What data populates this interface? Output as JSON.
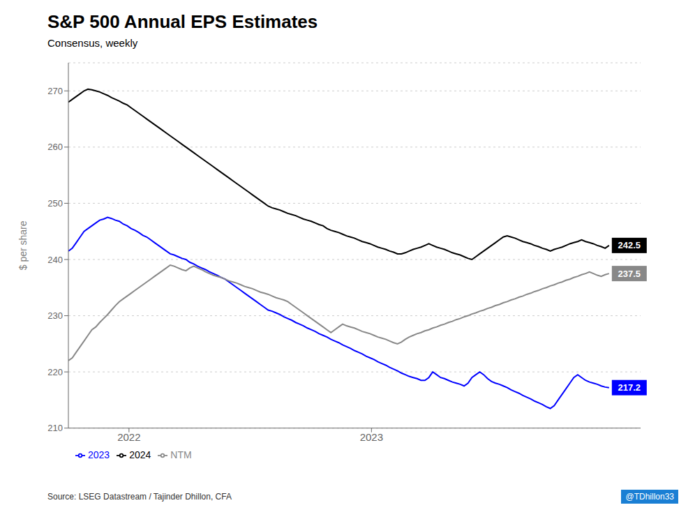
{
  "chart_data": {
    "type": "line",
    "title": "S&P 500 Annual EPS Estimates",
    "subtitle": "Consensus, weekly",
    "y_label": "$ per share",
    "source": "Source: LSEG Datastream / Tajinder Dhillon, CFA",
    "watermark": "@TDhillon33",
    "xlim": [
      2021.75,
      2024.11
    ],
    "xticks": [
      2022,
      2023
    ],
    "ylim": [
      210,
      275
    ],
    "yticks": [
      210,
      220,
      230,
      240,
      250,
      260,
      270
    ],
    "grid": true,
    "legend": "bottom",
    "x": [
      2021.75,
      2021.76616,
      2021.78232,
      2021.79848,
      2021.81464,
      2021.8308,
      2021.84696,
      2021.86312,
      2021.87928,
      2021.89543,
      2021.91159,
      2021.92775,
      2021.94391,
      2021.96007,
      2021.97623,
      2021.99239,
      2022.00855,
      2022.02471,
      2022.04087,
      2022.05703,
      2022.07319,
      2022.08935,
      2022.10551,
      2022.12167,
      2022.13783,
      2022.15399,
      2022.17014,
      2022.1863,
      2022.20246,
      2022.21862,
      2022.23478,
      2022.25094,
      2022.2671,
      2022.28326,
      2022.29942,
      2022.31558,
      2022.33174,
      2022.3479,
      2022.36406,
      2022.38022,
      2022.39638,
      2022.41254,
      2022.4287,
      2022.44486,
      2022.46101,
      2022.47717,
      2022.49333,
      2022.50949,
      2022.52565,
      2022.54181,
      2022.55797,
      2022.57413,
      2022.59029,
      2022.60645,
      2022.62261,
      2022.63877,
      2022.65493,
      2022.67109,
      2022.68725,
      2022.70341,
      2022.71957,
      2022.73572,
      2022.75188,
      2022.76804,
      2022.7842,
      2022.80036,
      2022.81652,
      2022.83268,
      2022.84884,
      2022.865,
      2022.88116,
      2022.89732,
      2022.91348,
      2022.92964,
      2022.9458,
      2022.96196,
      2022.97812,
      2022.99428,
      2023.01043,
      2023.02659,
      2023.04275,
      2023.05891,
      2023.07507,
      2023.09123,
      2023.10739,
      2023.12355,
      2023.13971,
      2023.15587,
      2023.17203,
      2023.18819,
      2023.20435,
      2023.22051,
      2023.23667,
      2023.25283,
      2023.26899,
      2023.28514,
      2023.3013,
      2023.31746,
      2023.33362,
      2023.34978,
      2023.36594,
      2023.3821,
      2023.39826,
      2023.41442,
      2023.43058,
      2023.44674,
      2023.4629,
      2023.47906,
      2023.49522,
      2023.51138,
      2023.52754,
      2023.5437,
      2023.55986,
      2023.57601,
      2023.59217,
      2023.60833,
      2023.62449,
      2023.64065,
      2023.65681,
      2023.67297,
      2023.68913,
      2023.70529,
      2023.72145,
      2023.73761,
      2023.75377,
      2023.76993,
      2023.78609,
      2023.80225,
      2023.81841,
      2023.83457,
      2023.85072,
      2023.86688,
      2023.88304,
      2023.8992,
      2023.91536,
      2023.93152,
      2023.94768,
      2023.96384,
      2023.98
    ],
    "series": [
      {
        "name": "2023",
        "color": "#0000ff",
        "values": [
          241.5,
          242.0,
          243.0,
          244.0,
          245.0,
          245.5,
          246.0,
          246.5,
          247.0,
          247.2,
          247.5,
          247.3,
          247.0,
          246.8,
          246.3,
          246.0,
          245.5,
          245.2,
          244.8,
          244.3,
          244.0,
          243.5,
          243.0,
          242.5,
          242.0,
          241.5,
          241.0,
          240.8,
          240.5,
          240.2,
          240.0,
          239.5,
          239.2,
          238.8,
          238.5,
          238.2,
          237.8,
          237.5,
          237.2,
          236.8,
          236.5,
          236.0,
          235.5,
          235.0,
          234.5,
          234.0,
          233.5,
          233.0,
          232.5,
          232.0,
          231.5,
          231.0,
          230.8,
          230.5,
          230.2,
          229.8,
          229.5,
          229.2,
          228.8,
          228.5,
          228.2,
          227.8,
          227.5,
          227.2,
          226.8,
          226.5,
          226.2,
          225.8,
          225.5,
          225.2,
          224.8,
          224.5,
          224.2,
          223.8,
          223.5,
          223.2,
          222.8,
          222.5,
          222.2,
          221.8,
          221.5,
          221.2,
          220.8,
          220.5,
          220.2,
          219.8,
          219.5,
          219.2,
          219.0,
          218.8,
          218.5,
          218.5,
          219.0,
          220.0,
          219.5,
          219.0,
          218.8,
          218.5,
          218.2,
          218.0,
          217.8,
          217.5,
          218.0,
          219.0,
          219.5,
          220.0,
          219.5,
          218.8,
          218.3,
          218.0,
          217.8,
          217.5,
          217.2,
          216.8,
          216.5,
          216.2,
          215.8,
          215.5,
          215.2,
          214.8,
          214.5,
          214.2,
          213.8,
          213.5,
          214.0,
          215.0,
          216.0,
          217.0,
          218.0,
          219.0,
          219.5,
          219.0,
          218.5,
          218.2,
          218.0,
          217.8,
          217.5,
          217.3,
          217.2
        ]
      },
      {
        "name": "2024",
        "color": "#000000",
        "values": [
          268.0,
          268.5,
          269.0,
          269.5,
          270.0,
          270.3,
          270.2,
          270.0,
          269.8,
          269.5,
          269.2,
          268.8,
          268.5,
          268.2,
          267.8,
          267.5,
          267.0,
          266.5,
          266.0,
          265.5,
          265.0,
          264.5,
          264.0,
          263.5,
          263.0,
          262.5,
          262.0,
          261.5,
          261.0,
          260.5,
          260.0,
          259.5,
          259.0,
          258.5,
          258.0,
          257.5,
          257.0,
          256.5,
          256.0,
          255.5,
          255.0,
          254.5,
          254.0,
          253.5,
          253.0,
          252.5,
          252.0,
          251.5,
          251.0,
          250.5,
          250.0,
          249.5,
          249.2,
          249.0,
          248.8,
          248.5,
          248.2,
          248.0,
          247.8,
          247.5,
          247.2,
          247.0,
          246.8,
          246.5,
          246.2,
          246.0,
          245.5,
          245.2,
          245.0,
          244.8,
          244.5,
          244.2,
          244.0,
          243.8,
          243.5,
          243.2,
          243.0,
          242.8,
          242.5,
          242.2,
          242.0,
          241.8,
          241.5,
          241.3,
          241.0,
          241.0,
          241.2,
          241.5,
          241.8,
          242.0,
          242.2,
          242.5,
          242.8,
          242.5,
          242.2,
          242.0,
          241.8,
          241.5,
          241.2,
          241.0,
          240.8,
          240.5,
          240.2,
          240.0,
          240.5,
          241.0,
          241.5,
          242.0,
          242.5,
          243.0,
          243.5,
          244.0,
          244.2,
          244.0,
          243.8,
          243.5,
          243.2,
          243.0,
          242.8,
          242.5,
          242.3,
          242.0,
          241.8,
          241.5,
          241.8,
          242.0,
          242.2,
          242.5,
          242.8,
          243.0,
          243.2,
          243.5,
          243.2,
          243.0,
          242.8,
          242.5,
          242.3,
          242.0,
          242.5
        ]
      },
      {
        "name": "NTM",
        "color": "#888888",
        "values": [
          222.0,
          222.5,
          223.5,
          224.5,
          225.5,
          226.5,
          227.5,
          228.0,
          228.8,
          229.5,
          230.2,
          231.0,
          231.8,
          232.5,
          233.0,
          233.5,
          234.0,
          234.5,
          235.0,
          235.5,
          236.0,
          236.5,
          237.0,
          237.5,
          238.0,
          238.5,
          239.0,
          238.8,
          238.5,
          238.2,
          238.0,
          238.5,
          238.8,
          238.5,
          238.2,
          237.8,
          237.5,
          237.2,
          237.0,
          236.8,
          236.5,
          236.2,
          236.0,
          235.8,
          235.5,
          235.2,
          235.0,
          234.8,
          234.5,
          234.2,
          234.0,
          233.8,
          233.5,
          233.2,
          233.0,
          232.8,
          232.5,
          232.0,
          231.5,
          231.0,
          230.5,
          230.0,
          229.5,
          229.0,
          228.5,
          228.0,
          227.5,
          227.0,
          227.5,
          228.0,
          228.5,
          228.2,
          228.0,
          227.8,
          227.5,
          227.2,
          227.0,
          226.8,
          226.5,
          226.2,
          226.0,
          225.8,
          225.5,
          225.2,
          225.0,
          225.3,
          225.8,
          226.2,
          226.5,
          226.8,
          227.0,
          227.3,
          227.5,
          227.8,
          228.0,
          228.3,
          228.5,
          228.8,
          229.0,
          229.3,
          229.5,
          229.8,
          230.0,
          230.3,
          230.5,
          230.8,
          231.0,
          231.3,
          231.5,
          231.8,
          232.0,
          232.3,
          232.5,
          232.8,
          233.0,
          233.3,
          233.5,
          233.8,
          234.0,
          234.3,
          234.5,
          234.8,
          235.0,
          235.3,
          235.5,
          235.8,
          236.0,
          236.3,
          236.5,
          236.8,
          237.0,
          237.3,
          237.5,
          237.8,
          237.5,
          237.2,
          237.0,
          237.3,
          237.5
        ]
      }
    ],
    "annotations": [
      {
        "text": "242.5",
        "x": 2023.98,
        "y": 242.5,
        "series": "2024"
      },
      {
        "text": "237.5",
        "x": 2023.98,
        "y": 237.5,
        "series": "NTM"
      },
      {
        "text": "217.2",
        "x": 2023.98,
        "y": 217.2,
        "series": "2023"
      }
    ]
  }
}
